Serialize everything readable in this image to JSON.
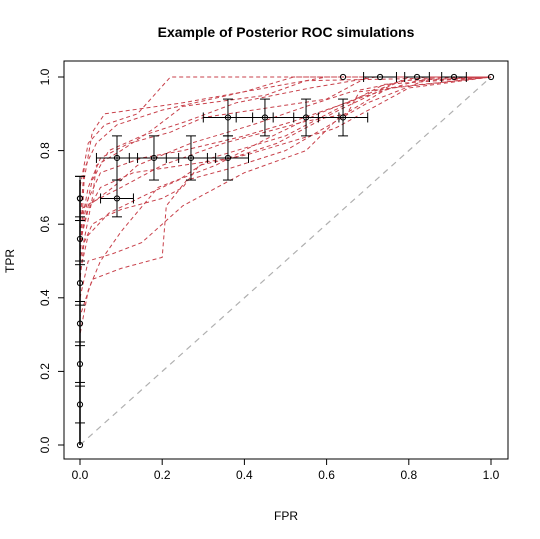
{
  "chart_data": {
    "type": "line",
    "title": "Example of Posterior ROC simulations",
    "xlabel": "FPR",
    "ylabel": "TPR",
    "xlim": [
      0,
      1
    ],
    "ylim": [
      0,
      1
    ],
    "xticks": [
      "0.0",
      "0.2",
      "0.4",
      "0.6",
      "0.8",
      "1.0"
    ],
    "yticks": [
      "0.0",
      "0.2",
      "0.4",
      "0.6",
      "0.8",
      "1.0"
    ],
    "grid": false,
    "legend": "none",
    "colors": {
      "simulations": "#c8414b",
      "diagonal": "#b0b0b0",
      "points": "#000000"
    },
    "reference_line": {
      "x": [
        0,
        1
      ],
      "y": [
        0,
        1
      ]
    },
    "simulations": [
      [
        [
          0,
          0
        ],
        [
          0,
          0.5
        ],
        [
          0.01,
          0.72
        ],
        [
          0.03,
          0.85
        ],
        [
          0.06,
          0.9
        ],
        [
          0.25,
          0.93
        ],
        [
          0.45,
          0.97
        ],
        [
          0.6,
          1.0
        ],
        [
          1,
          1
        ]
      ],
      [
        [
          0,
          0
        ],
        [
          0,
          0.64
        ],
        [
          0.03,
          0.66
        ],
        [
          0.1,
          0.7
        ],
        [
          0.2,
          0.76
        ],
        [
          0.35,
          0.82
        ],
        [
          0.55,
          0.88
        ],
        [
          0.65,
          0.9
        ],
        [
          0.68,
          0.96
        ],
        [
          1,
          1
        ]
      ],
      [
        [
          0,
          0
        ],
        [
          0,
          0.58
        ],
        [
          0.02,
          0.7
        ],
        [
          0.05,
          0.78
        ],
        [
          0.12,
          0.82
        ],
        [
          0.22,
          0.85
        ],
        [
          0.3,
          0.89
        ],
        [
          0.6,
          0.94
        ],
        [
          0.7,
          1.0
        ],
        [
          1,
          1
        ]
      ],
      [
        [
          0,
          0
        ],
        [
          0,
          0.4
        ],
        [
          0.02,
          0.5
        ],
        [
          0.08,
          0.52
        ],
        [
          0.15,
          0.55
        ],
        [
          0.25,
          0.65
        ],
        [
          0.4,
          0.74
        ],
        [
          0.55,
          0.8
        ],
        [
          0.63,
          0.89
        ],
        [
          0.75,
          0.97
        ],
        [
          1,
          1
        ]
      ],
      [
        [
          0,
          0
        ],
        [
          0,
          0.62
        ],
        [
          0.05,
          0.74
        ],
        [
          0.15,
          0.78
        ],
        [
          0.25,
          0.8
        ],
        [
          0.4,
          0.84
        ],
        [
          0.52,
          0.88
        ],
        [
          0.7,
          0.95
        ],
        [
          0.82,
          0.99
        ],
        [
          1,
          1
        ]
      ],
      [
        [
          0,
          0
        ],
        [
          0,
          0.35
        ],
        [
          0.03,
          0.45
        ],
        [
          0.1,
          0.48
        ],
        [
          0.2,
          0.51
        ],
        [
          0.21,
          0.65
        ],
        [
          0.26,
          0.72
        ],
        [
          0.36,
          0.75
        ],
        [
          0.5,
          0.8
        ],
        [
          0.7,
          0.93
        ],
        [
          0.86,
          1.0
        ],
        [
          1,
          1
        ]
      ],
      [
        [
          0,
          0
        ],
        [
          0,
          0.45
        ],
        [
          0.01,
          0.55
        ],
        [
          0.03,
          0.6
        ],
        [
          0.06,
          0.62
        ],
        [
          0.1,
          0.64
        ],
        [
          0.2,
          0.67
        ],
        [
          0.25,
          0.7
        ],
        [
          0.29,
          0.76
        ],
        [
          0.41,
          0.79
        ],
        [
          0.62,
          0.86
        ],
        [
          0.8,
          0.97
        ],
        [
          1,
          1
        ]
      ],
      [
        [
          0,
          0
        ],
        [
          0,
          0.55
        ],
        [
          0.02,
          0.64
        ],
        [
          0.05,
          0.7
        ],
        [
          0.13,
          0.74
        ],
        [
          0.25,
          0.76
        ],
        [
          0.37,
          0.78
        ],
        [
          0.48,
          0.82
        ],
        [
          0.63,
          0.91
        ],
        [
          0.8,
          1.0
        ],
        [
          1,
          1
        ]
      ],
      [
        [
          0,
          0
        ],
        [
          0,
          0.5
        ],
        [
          0.03,
          0.67
        ],
        [
          0.04,
          0.76
        ],
        [
          0.1,
          0.8
        ],
        [
          0.18,
          0.86
        ],
        [
          0.25,
          0.92
        ],
        [
          0.45,
          0.95
        ],
        [
          0.55,
          0.99
        ],
        [
          1,
          1
        ]
      ],
      [
        [
          0,
          0
        ],
        [
          0,
          0.3
        ],
        [
          0.02,
          0.42
        ],
        [
          0.05,
          0.5
        ],
        [
          0.1,
          0.58
        ],
        [
          0.13,
          0.62
        ],
        [
          0.19,
          0.7
        ],
        [
          0.33,
          0.76
        ],
        [
          0.45,
          0.83
        ],
        [
          0.58,
          0.9
        ],
        [
          0.78,
          0.99
        ],
        [
          1,
          1
        ]
      ],
      [
        [
          0,
          0
        ],
        [
          0,
          0.7
        ],
        [
          0.02,
          0.82
        ],
        [
          0.06,
          0.87
        ],
        [
          0.14,
          0.9
        ],
        [
          0.22,
          1.0
        ],
        [
          1,
          1
        ]
      ],
      [
        [
          0,
          0
        ],
        [
          0,
          0.55
        ],
        [
          0.02,
          0.65
        ],
        [
          0.08,
          0.7
        ],
        [
          0.14,
          0.76
        ],
        [
          0.27,
          0.82
        ],
        [
          0.42,
          0.87
        ],
        [
          0.55,
          0.92
        ],
        [
          0.66,
          0.96
        ],
        [
          0.84,
          1.0
        ],
        [
          1,
          1
        ]
      ],
      [
        [
          0,
          0
        ],
        [
          0,
          0.6
        ],
        [
          0.01,
          0.75
        ],
        [
          0.04,
          0.82
        ],
        [
          0.09,
          0.87
        ],
        [
          0.2,
          0.91
        ],
        [
          0.4,
          0.96
        ],
        [
          0.52,
          1.0
        ],
        [
          1,
          1
        ]
      ],
      [
        [
          0,
          0
        ],
        [
          0,
          0.47
        ],
        [
          0.02,
          0.57
        ],
        [
          0.07,
          0.63
        ],
        [
          0.16,
          0.68
        ],
        [
          0.24,
          0.72
        ],
        [
          0.32,
          0.78
        ],
        [
          0.5,
          0.84
        ],
        [
          0.62,
          0.91
        ],
        [
          0.74,
          0.98
        ],
        [
          1,
          1
        ]
      ],
      [
        [
          0,
          0
        ],
        [
          0,
          0.52
        ],
        [
          0.01,
          0.62
        ],
        [
          0.03,
          0.72
        ],
        [
          0.07,
          0.8
        ],
        [
          0.15,
          0.84
        ],
        [
          0.26,
          0.88
        ],
        [
          0.38,
          0.93
        ],
        [
          0.56,
          0.97
        ],
        [
          0.72,
          1.0
        ],
        [
          1,
          1
        ]
      ]
    ],
    "observed_points": {
      "x": [
        0,
        0,
        0,
        0,
        0,
        0,
        0,
        0,
        0.09,
        0.09,
        0.18,
        0.27,
        0.36,
        0.36,
        0.45,
        0.55,
        0.64,
        0.64,
        0.73,
        0.82,
        0.91,
        1.0
      ],
      "y": [
        0,
        0.11,
        0.22,
        0.33,
        0.44,
        0.56,
        0.67,
        0.67,
        0.67,
        0.78,
        0.78,
        0.78,
        0.78,
        0.89,
        0.89,
        0.89,
        0.89,
        1.0,
        1.0,
        1.0,
        1.0,
        1.0
      ],
      "xerr": [
        0,
        0,
        0,
        0,
        0,
        0,
        0,
        0,
        0.04,
        0.05,
        0.06,
        0.06,
        0.05,
        0.06,
        0.07,
        0.08,
        0.06,
        0,
        0.04,
        0.03,
        0.03,
        0
      ],
      "yerr": [
        0,
        0.05,
        0.05,
        0.05,
        0.05,
        0.06,
        0.06,
        0.06,
        0.05,
        0.06,
        0.06,
        0.06,
        0.06,
        0.05,
        0.05,
        0.05,
        0.05,
        0,
        0,
        0,
        0,
        0
      ]
    }
  }
}
